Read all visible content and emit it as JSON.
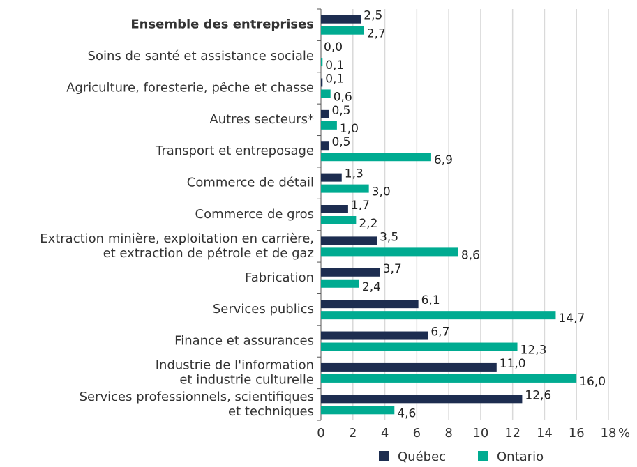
{
  "chart_data": {
    "type": "bar",
    "orientation": "horizontal",
    "categories": [
      "Ensemble des entreprises",
      "Soins de santé et assistance sociale",
      "Agriculture, foresterie, pêche et chasse",
      "Autres secteurs*",
      "Transport et entreposage",
      "Commerce de détail",
      "Commerce de gros",
      [
        "Extraction minière, exploitation en carrière,",
        "et extraction de pétrole et de gaz"
      ],
      "Fabrication",
      "Services publics",
      "Finance et assurances",
      [
        "Industrie de l'information",
        "et industrie culturelle"
      ],
      [
        "Services professionnels, scientifiques",
        "et techniques"
      ]
    ],
    "series": [
      {
        "name": "Québec",
        "color": "#1d2d50",
        "values": [
          2.5,
          0.0,
          0.1,
          0.5,
          0.5,
          1.3,
          1.7,
          3.5,
          3.7,
          6.1,
          6.7,
          11.0,
          12.6
        ],
        "value_labels": [
          "2,5",
          "0,0",
          "0,1",
          "0,5",
          "0,5",
          "1,3",
          "1,7",
          "3,5",
          "3,7",
          "6,1",
          "6,7",
          "11,0",
          "12,6"
        ]
      },
      {
        "name": "Ontario",
        "color": "#00ab91",
        "values": [
          2.7,
          0.1,
          0.6,
          1.0,
          6.9,
          3.0,
          2.2,
          8.6,
          2.4,
          14.7,
          12.3,
          16.0,
          4.6
        ],
        "value_labels": [
          "2,7",
          "0,1",
          "0,6",
          "1,0",
          "6,9",
          "3,0",
          "2,2",
          "8,6",
          "2,4",
          "14,7",
          "12,3",
          "16,0",
          "4,6"
        ]
      }
    ],
    "xlabel": "%",
    "xlim": [
      0,
      18
    ],
    "xticks": [
      0,
      2,
      4,
      6,
      8,
      10,
      12,
      14,
      16,
      18
    ],
    "grid": true,
    "legend": "bottom"
  }
}
